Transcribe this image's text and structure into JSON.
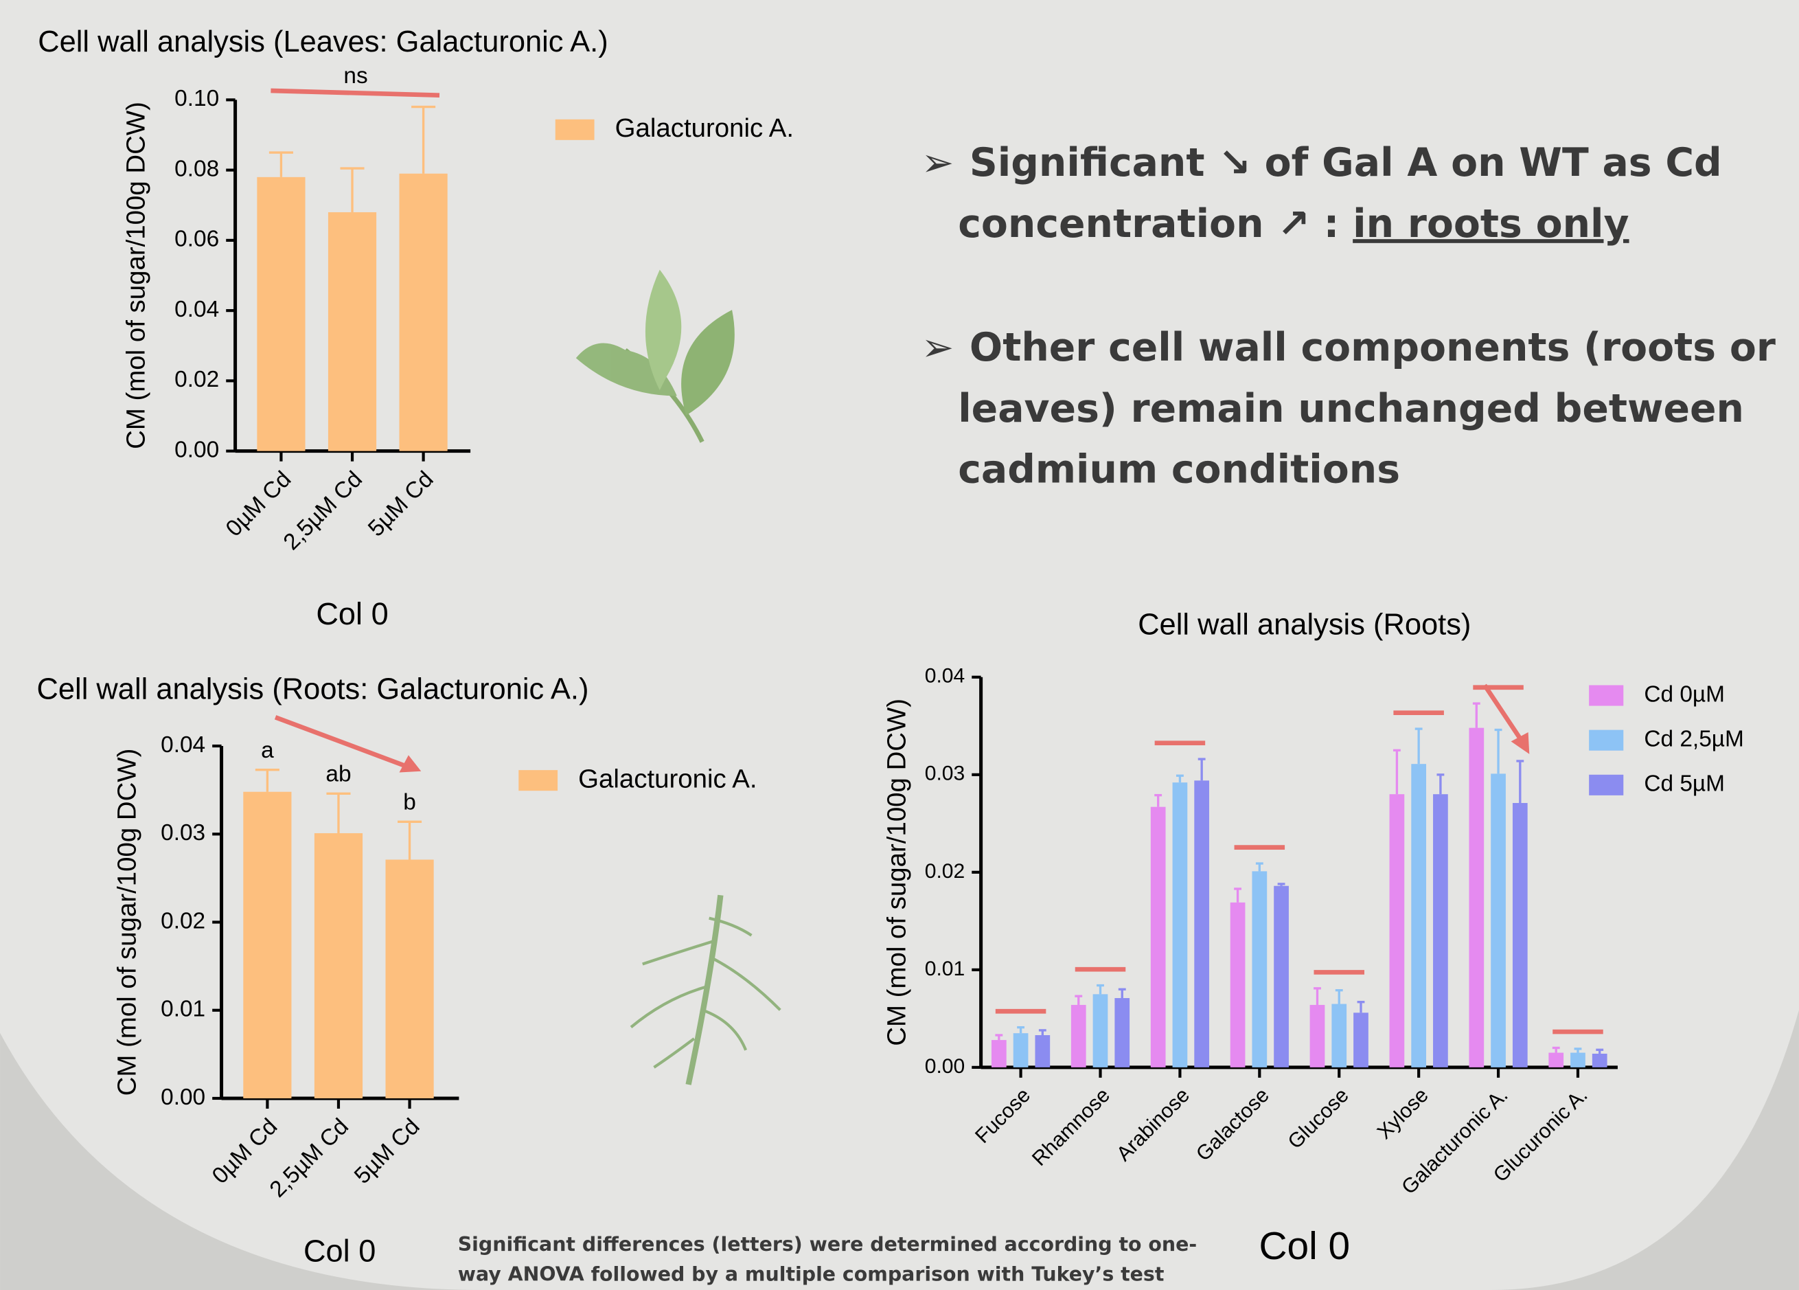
{
  "chart_data": [
    {
      "type": "bar",
      "title": "Cell wall analysis (Leaves: Galacturonic A.)",
      "y_label": "CM (mol of sugar/100g DCW)",
      "x_label": "Col 0",
      "categories": [
        "0µM Cd",
        "2,5µM Cd",
        "5µM Cd"
      ],
      "series": [
        {
          "name": "Galacturonic A.",
          "color": "#fdbf7e",
          "values": [
            0.078,
            0.068,
            0.079
          ],
          "errors": [
            0.007,
            0.0125,
            0.019
          ]
        }
      ],
      "ylim": [
        0,
        0.1
      ],
      "yticks": [
        {
          "value": 0,
          "label": "0.00"
        },
        {
          "value": 0.02,
          "label": "0.02"
        },
        {
          "value": 0.04,
          "label": "0.04"
        },
        {
          "value": 0.06,
          "label": "0.06"
        },
        {
          "value": 0.08,
          "label": "0.08"
        },
        {
          "value": 0.1,
          "label": "0.10"
        }
      ],
      "annotation": "ns"
    },
    {
      "type": "bar",
      "title": "Cell wall analysis (Roots: Galacturonic A.)",
      "y_label": "CM (mol of sugar/100g DCW)",
      "x_label": "Col 0",
      "categories": [
        "0µM Cd",
        "2,5µM Cd",
        "5µM Cd"
      ],
      "series": [
        {
          "name": "Galacturonic A.",
          "color": "#fdbf7e",
          "values": [
            0.0348,
            0.0301,
            0.0271
          ],
          "errors": [
            0.0025,
            0.0045,
            0.0043
          ]
        }
      ],
      "ylim": [
        0,
        0.04
      ],
      "yticks": [
        {
          "value": 0,
          "label": "0.00"
        },
        {
          "value": 0.01,
          "label": "0.01"
        },
        {
          "value": 0.02,
          "label": "0.02"
        },
        {
          "value": 0.03,
          "label": "0.03"
        },
        {
          "value": 0.04,
          "label": "0.04"
        }
      ],
      "bar_labels": [
        "a",
        "ab",
        "b"
      ]
    },
    {
      "type": "bar",
      "title": "Cell wall analysis (Roots)",
      "y_label": "CM (mol of sugar/100g DCW)",
      "x_label": "Col 0",
      "categories": [
        "Fucose",
        "Rhamnose",
        "Arabinose",
        "Galactose",
        "Glucose",
        "Xylose",
        "Galacturonic A.",
        "Glucuronic A."
      ],
      "series": [
        {
          "name": "Cd 0µM",
          "color": "#e58af0",
          "values": [
            0.0028,
            0.0064,
            0.0267,
            0.0169,
            0.0064,
            0.028,
            0.0348,
            0.0015
          ],
          "errors": [
            0.0005,
            0.0009,
            0.0012,
            0.0014,
            0.0017,
            0.0045,
            0.0025,
            0.0005
          ]
        },
        {
          "name": "Cd 2,5µM",
          "color": "#8dc3f5",
          "values": [
            0.0035,
            0.0075,
            0.0292,
            0.0201,
            0.0065,
            0.0311,
            0.0301,
            0.0015
          ],
          "errors": [
            0.0006,
            0.0009,
            0.0007,
            0.0008,
            0.0014,
            0.0036,
            0.0045,
            0.0004
          ]
        },
        {
          "name": "Cd 5µM",
          "color": "#8b8cf0",
          "values": [
            0.0033,
            0.0071,
            0.0294,
            0.0186,
            0.0056,
            0.028,
            0.0271,
            0.0014
          ],
          "errors": [
            0.0005,
            0.0009,
            0.0022,
            0.0002,
            0.0011,
            0.002,
            0.0043,
            0.0004
          ]
        }
      ],
      "ylim": [
        0,
        0.04
      ],
      "yticks": [
        {
          "value": 0,
          "label": "0.00"
        },
        {
          "value": 0.01,
          "label": "0.01"
        },
        {
          "value": 0.02,
          "label": "0.02"
        },
        {
          "value": 0.03,
          "label": "0.03"
        },
        {
          "value": 0.04,
          "label": "0.04"
        }
      ]
    }
  ],
  "bullets": [
    {
      "lines": [
        "Significant ↘ of Gal A on WT as Cd",
        "concentration ↗ : "
      ],
      "underlined": "in roots only"
    },
    {
      "lines": [
        "Other cell wall components (roots or",
        "leaves) remain unchanged between",
        "cadmium conditions"
      ]
    }
  ],
  "footnote": [
    "Significant differences (letters) were determined according to one-",
    "way ANOVA followed by a multiple comparison with Tukey’s test"
  ]
}
